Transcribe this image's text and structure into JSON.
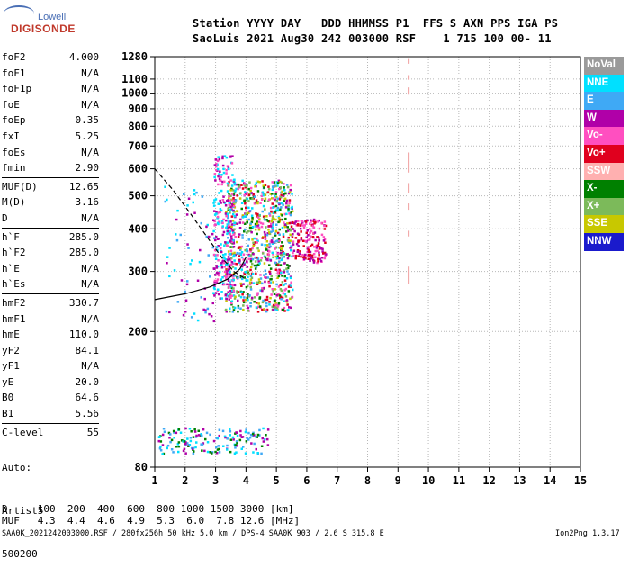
{
  "logo": {
    "line1": "Lowell",
    "line2": "DIGISONDE"
  },
  "header": {
    "line1": "Station YYYY DAY   DDD HHMMSS P1  FFS S AXN PPS IGA PS",
    "line2": "SaoLuis 2021 Aug30 242 003000 RSF    1 715 100 00- 11"
  },
  "params": [
    {
      "name": "foF2",
      "value": "4.000"
    },
    {
      "name": "foF1",
      "value": "N/A"
    },
    {
      "name": "foF1p",
      "value": "N/A"
    },
    {
      "name": "foE",
      "value": "N/A"
    },
    {
      "name": "foEp",
      "value": "0.35"
    },
    {
      "name": "fxI",
      "value": "5.25"
    },
    {
      "name": "foEs",
      "value": "N/A"
    },
    {
      "name": "fmin",
      "value": "2.90"
    },
    {
      "sep": true
    },
    {
      "name": "MUF(D)",
      "value": "12.65"
    },
    {
      "name": "M(D)",
      "value": "3.16"
    },
    {
      "name": "D",
      "value": "N/A"
    },
    {
      "sep": true
    },
    {
      "name": "h`F",
      "value": "285.0"
    },
    {
      "name": "h`F2",
      "value": "285.0"
    },
    {
      "name": "h`E",
      "value": "N/A"
    },
    {
      "name": "h`Es",
      "value": "N/A"
    },
    {
      "sep": true
    },
    {
      "name": "hmF2",
      "value": "330.7"
    },
    {
      "name": "hmF1",
      "value": "N/A"
    },
    {
      "name": "hmE",
      "value": "110.0"
    },
    {
      "name": "yF2",
      "value": "84.1"
    },
    {
      "name": "yF1",
      "value": "N/A"
    },
    {
      "name": "yE",
      "value": "20.0"
    },
    {
      "name": "B0",
      "value": "64.6"
    },
    {
      "name": "B1",
      "value": "5.56"
    },
    {
      "sep": true
    },
    {
      "name": "C-level",
      "value": "55"
    }
  ],
  "auto": {
    "line1": "Auto:",
    "line2": "Artist5",
    "line3": "500200"
  },
  "distance_table": {
    "row1": "D     100  200  400  600  800 1000 1500 3000 [km]",
    "row2": "MUF   4.3  4.4  4.6  4.9  5.3  6.0  7.8 12.6 [MHz]"
  },
  "footer": "SAA0K_2021242003000.RSF / 280fx256h 50 kHz 5.0 km / DPS-4 SAA0K 903 / 2.6 S 315.8 E",
  "version": "Ion2Png 1.3.17",
  "legend": [
    {
      "label": "NoVal",
      "color": "#9a9a9a"
    },
    {
      "label": "NNE",
      "color": "#00e0ff"
    },
    {
      "label": "E",
      "color": "#3fa9f5"
    },
    {
      "label": "W",
      "color": "#b000a8"
    },
    {
      "label": "Vo-",
      "color": "#ff4fc0"
    },
    {
      "label": "Vo+",
      "color": "#e0001e"
    },
    {
      "label": "SSW",
      "color": "#ffb0b0"
    },
    {
      "label": "X-",
      "color": "#008000"
    },
    {
      "label": "X+",
      "color": "#7cba5a"
    },
    {
      "label": "SSE",
      "color": "#c8c800"
    },
    {
      "label": "NNW",
      "color": "#1a1acc"
    }
  ],
  "chart_data": {
    "type": "scatter",
    "xlabel": "",
    "ylabel": "",
    "xlim": [
      1,
      15
    ],
    "ylim": [
      80,
      1280
    ],
    "x_ticks": [
      1,
      2,
      3,
      4,
      5,
      6,
      7,
      8,
      9,
      10,
      11,
      12,
      13,
      14,
      15
    ],
    "y_ticks": [
      80,
      200,
      300,
      400,
      500,
      600,
      700,
      800,
      900,
      1000,
      1100,
      1280
    ],
    "y_scale": "log",
    "grid": true,
    "series": [
      {
        "name": "F-layer echoes (main cloud)",
        "x_range": [
          3.3,
          5.5
        ],
        "y_range": [
          230,
          560
        ],
        "color_mix": [
          "X-",
          "X+",
          "SSE",
          "W",
          "Vo-",
          "Vo+",
          "NNE",
          "E"
        ]
      },
      {
        "name": "F-layer echoes (spread)",
        "x_range": [
          5.5,
          6.6
        ],
        "y_range": [
          320,
          430
        ],
        "color_mix": [
          "W",
          "Vo-",
          "Vo+"
        ]
      },
      {
        "name": "low frequency sparse echoes",
        "x_range": [
          2.9,
          3.6
        ],
        "y_range": [
          250,
          660
        ],
        "color_mix": [
          "W",
          "Vo-",
          "NNE"
        ]
      },
      {
        "name": "E-region echoes",
        "x_range": [
          1.1,
          4.7
        ],
        "y_range": [
          88,
          105
        ],
        "color_mix": [
          "E",
          "NNE",
          "X-",
          "W"
        ]
      },
      {
        "name": "scattered echoes",
        "x_range": [
          1.3,
          3.0
        ],
        "y_range": [
          215,
          560
        ],
        "color_mix": [
          "E",
          "NNE",
          "W"
        ]
      }
    ],
    "profile_curves": [
      {
        "name": "dashed",
        "x": [
          1.0,
          1.6,
          2.2,
          2.8,
          3.2,
          3.6,
          4.0
        ],
        "y": [
          600,
          520,
          440,
          370,
          330,
          300,
          285
        ]
      },
      {
        "name": "solid",
        "x": [
          1.0,
          2.0,
          2.8,
          3.4,
          3.8,
          4.0
        ],
        "y": [
          248,
          258,
          270,
          285,
          305,
          330
        ]
      }
    ],
    "vertical_marker": {
      "x": 9.35,
      "color": "#f0a0a0",
      "y_ranges": [
        [
          1220,
          1260
        ],
        [
          1095,
          1130
        ],
        [
          990,
          1040
        ],
        [
          585,
          670
        ],
        [
          510,
          545
        ],
        [
          455,
          475
        ],
        [
          380,
          395
        ],
        [
          275,
          310
        ]
      ]
    }
  }
}
